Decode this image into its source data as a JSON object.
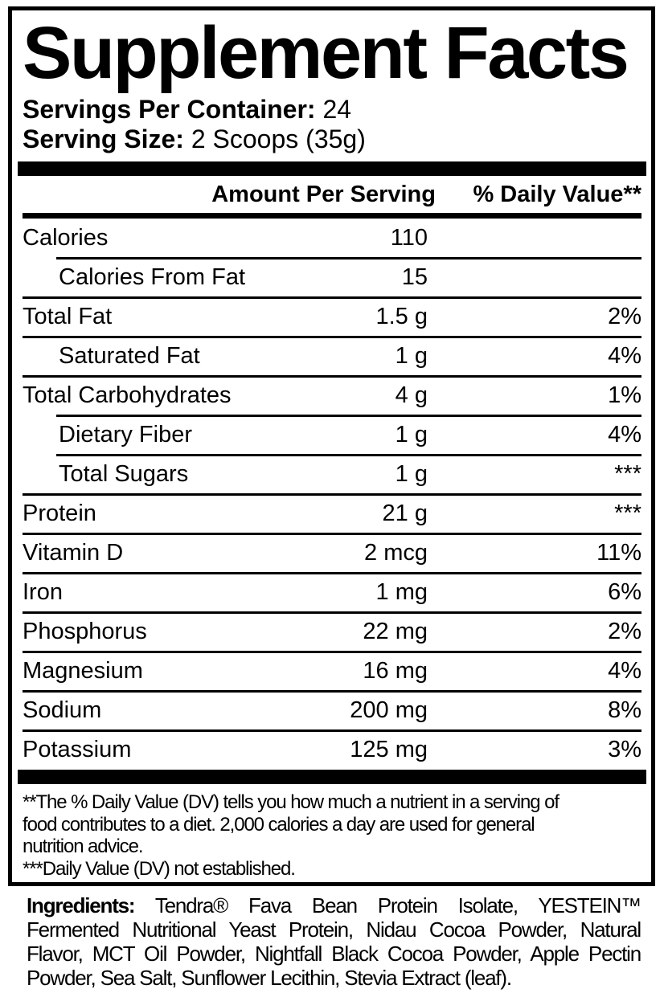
{
  "label": {
    "title": "Supplement Facts",
    "servings_per_container_label": "Servings Per Container:",
    "servings_per_container_value": "24",
    "serving_size_label": "Serving Size:",
    "serving_size_value": "2 Scoops (35g)",
    "column_headers": {
      "amount": "Amount Per Serving",
      "daily_value": "% Daily Value**"
    },
    "rows": [
      {
        "name": "Calories",
        "amount": "110",
        "dv": "",
        "indent": false,
        "sep": "none"
      },
      {
        "name": "Calories From Fat",
        "amount": "15",
        "dv": "",
        "indent": true,
        "sep": "indented"
      },
      {
        "name": "Total Fat",
        "amount": "1.5 g",
        "dv": "2%",
        "indent": false,
        "sep": "full"
      },
      {
        "name": "Saturated Fat",
        "amount": "1 g",
        "dv": "4%",
        "indent": true,
        "sep": "full"
      },
      {
        "name": "Total Carbohydrates",
        "amount": "4 g",
        "dv": "1%",
        "indent": false,
        "sep": "full"
      },
      {
        "name": "Dietary Fiber",
        "amount": "1 g",
        "dv": "4%",
        "indent": true,
        "sep": "indented"
      },
      {
        "name": "Total Sugars",
        "amount": "1 g",
        "dv": "***",
        "indent": true,
        "sep": "indented"
      },
      {
        "name": "Protein",
        "amount": "21 g",
        "dv": "***",
        "indent": false,
        "sep": "full"
      },
      {
        "name": "Vitamin D",
        "amount": "2 mcg",
        "dv": "11%",
        "indent": false,
        "sep": "full"
      },
      {
        "name": "Iron",
        "amount": "1 mg",
        "dv": "6%",
        "indent": false,
        "sep": "full"
      },
      {
        "name": "Phosphorus",
        "amount": "22 mg",
        "dv": "2%",
        "indent": false,
        "sep": "full"
      },
      {
        "name": "Magnesium",
        "amount": "16 mg",
        "dv": "4%",
        "indent": false,
        "sep": "full"
      },
      {
        "name": "Sodium",
        "amount": "200 mg",
        "dv": "8%",
        "indent": false,
        "sep": "full"
      },
      {
        "name": "Potassium",
        "amount": "125 mg",
        "dv": "3%",
        "indent": false,
        "sep": "full"
      }
    ],
    "footnote_lines": [
      "**The % Daily Value (DV) tells you how much a nutrient in a serving of",
      "food contributes to a diet. 2,000 calories a day are used for general",
      "nutrition advice.",
      "***Daily Value (DV) not established."
    ],
    "ingredients": {
      "label": "Ingredients:",
      "lines": [
        "Tendra® Fava Bean Protein Isolate, YESTEIN™",
        "Fermented Nutritional Yeast Protein, Nidau Cocoa Powder, Natural",
        "Flavor, MCT Oil Powder, Nightfall Black Cocoa Powder, Apple Pectin",
        "Powder, Sea Salt, Sunflower Lecithin, Stevia Extract (leaf)."
      ]
    },
    "colors": {
      "text": "#000000",
      "background": "#ffffff"
    }
  }
}
